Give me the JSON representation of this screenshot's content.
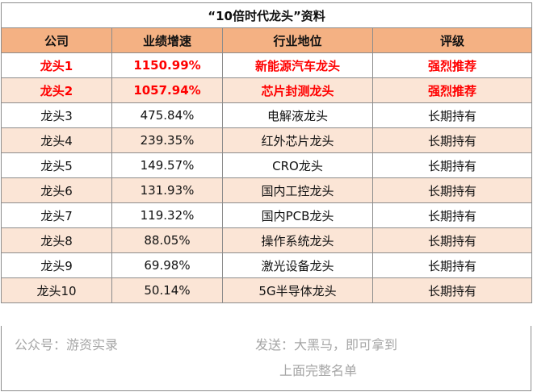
{
  "title": "“10倍时代龙头”资料",
  "headers": [
    "公司",
    "业绩增速",
    "行业地位",
    "评级"
  ],
  "rows": [
    [
      "龙头1",
      "1150.99%",
      "新能源汽车龙头",
      "强烈推荐"
    ],
    [
      "龙头2",
      "1057.94%",
      "芯片封测龙头",
      "强烈推荐"
    ],
    [
      "龙头3",
      "475.84%",
      "电解液龙头",
      "长期持有"
    ],
    [
      "龙头4",
      "239.35%",
      "红外芯片龙头",
      "长期持有"
    ],
    [
      "龙头5",
      "149.57%",
      "CRO龙头",
      "长期持有"
    ],
    [
      "龙头6",
      "131.93%",
      "国内工控龙头",
      "长期持有"
    ],
    [
      "龙头7",
      "119.32%",
      "国内PCB龙头",
      "长期持有"
    ],
    [
      "龙头8",
      "88.05%",
      "操作系统龙头",
      "长期持有"
    ],
    [
      "龙头9",
      "69.98%",
      "激光设备龙头",
      "长期持有"
    ],
    [
      "龙头10",
      "50.14%",
      "5G半导体龙头",
      "长期持有"
    ]
  ],
  "footer": {
    "account": "公众号：游资实录",
    "send_line1": "发送：大黑马，即可拿到",
    "send_line2": "上面完整名单"
  },
  "colors": {
    "header_bg": "#f4b183",
    "stripe_bg": "#fbe5d6",
    "highlight_text": "#ff0000",
    "footer_text": "#a6a6a6"
  }
}
